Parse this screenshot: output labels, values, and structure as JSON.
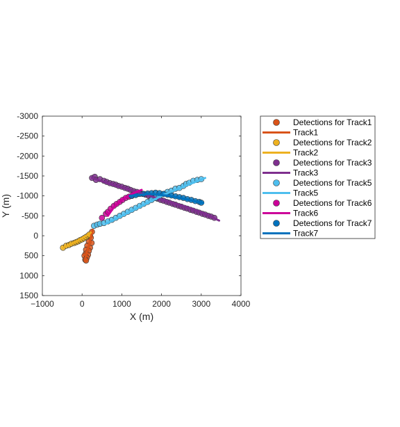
{
  "chart_data": {
    "type": "scatter",
    "xlabel": "X (m)",
    "ylabel": "Y (m)",
    "xlim": [
      -1000,
      4000
    ],
    "ylim": [
      -3000,
      1500
    ],
    "y_axis_reversed": true,
    "grid": false,
    "legend_placement": "outside-right",
    "x_ticks": [
      {
        "value": -1000,
        "label": "−1000"
      },
      {
        "value": 0,
        "label": "0"
      },
      {
        "value": 1000,
        "label": "1000"
      },
      {
        "value": 2000,
        "label": "2000"
      },
      {
        "value": 3000,
        "label": "3000"
      },
      {
        "value": 4000,
        "label": "4000"
      }
    ],
    "y_ticks": [
      {
        "value": -3000,
        "label": "-3000"
      },
      {
        "value": -2500,
        "label": "-2500"
      },
      {
        "value": -2000,
        "label": "-2000"
      },
      {
        "value": -1500,
        "label": "-1500"
      },
      {
        "value": -1000,
        "label": "-1000"
      },
      {
        "value": -500,
        "label": "-500"
      },
      {
        "value": 0,
        "label": "0"
      },
      {
        "value": 500,
        "label": "500"
      },
      {
        "value": 1000,
        "label": "1000"
      },
      {
        "value": 1500,
        "label": "1500"
      }
    ],
    "tracks": [
      {
        "track_name": "Track1",
        "detections_name": "Detections for Track1",
        "color": "#D95319",
        "track_line": [
          [
            270,
            -150
          ],
          [
            230,
            0
          ],
          [
            180,
            200
          ],
          [
            120,
            400
          ],
          [
            80,
            580
          ]
        ],
        "detections": [
          [
            250,
            -100
          ],
          [
            200,
            0
          ],
          [
            220,
            50
          ],
          [
            170,
            150
          ],
          [
            240,
            180
          ],
          [
            130,
            250
          ],
          [
            200,
            300
          ],
          [
            100,
            350
          ],
          [
            170,
            380
          ],
          [
            90,
            450
          ],
          [
            150,
            480
          ],
          [
            60,
            500
          ],
          [
            120,
            550
          ],
          [
            80,
            600
          ],
          [
            100,
            620
          ]
        ]
      },
      {
        "track_name": "Track2",
        "detections_name": "Detections for Track2",
        "color": "#EDB120",
        "track_line": [
          [
            -480,
            300
          ],
          [
            -300,
            220
          ],
          [
            -100,
            120
          ],
          [
            100,
            0
          ],
          [
            220,
            -80
          ]
        ],
        "detections": [
          [
            -480,
            300
          ],
          [
            -400,
            250
          ],
          [
            -330,
            230
          ],
          [
            -270,
            200
          ],
          [
            -200,
            180
          ],
          [
            -150,
            160
          ],
          [
            -100,
            140
          ],
          [
            -50,
            110
          ],
          [
            0,
            90
          ],
          [
            50,
            60
          ],
          [
            100,
            30
          ],
          [
            150,
            0
          ],
          [
            180,
            -30
          ]
        ]
      },
      {
        "track_name": "Track3",
        "detections_name": "Detections for Track3",
        "color": "#7E2F8E",
        "track_line": [
          [
            250,
            -1450
          ],
          [
            700,
            -1300
          ],
          [
            1200,
            -1150
          ],
          [
            1700,
            -1000
          ],
          [
            2200,
            -850
          ],
          [
            2700,
            -700
          ],
          [
            3100,
            -550
          ],
          [
            3450,
            -380
          ]
        ],
        "detections": [
          [
            250,
            -1450
          ],
          [
            320,
            -1480
          ],
          [
            350,
            -1400
          ],
          [
            450,
            -1420
          ],
          [
            550,
            -1380
          ],
          [
            620,
            -1350
          ],
          [
            700,
            -1320
          ],
          [
            780,
            -1300
          ],
          [
            850,
            -1280
          ],
          [
            920,
            -1250
          ],
          [
            1000,
            -1230
          ],
          [
            1080,
            -1200
          ],
          [
            1150,
            -1180
          ],
          [
            1220,
            -1150
          ],
          [
            1300,
            -1120
          ],
          [
            1380,
            -1100
          ],
          [
            1450,
            -1080
          ],
          [
            1530,
            -1050
          ],
          [
            1600,
            -1030
          ],
          [
            1680,
            -1000
          ],
          [
            1750,
            -980
          ],
          [
            1830,
            -950
          ],
          [
            1900,
            -930
          ],
          [
            1980,
            -900
          ],
          [
            2050,
            -880
          ],
          [
            2130,
            -850
          ],
          [
            2200,
            -830
          ],
          [
            2280,
            -800
          ],
          [
            2350,
            -780
          ],
          [
            2430,
            -750
          ],
          [
            2500,
            -730
          ],
          [
            2580,
            -700
          ],
          [
            2650,
            -680
          ],
          [
            2730,
            -650
          ],
          [
            2800,
            -630
          ],
          [
            2880,
            -600
          ],
          [
            2950,
            -580
          ],
          [
            3030,
            -550
          ],
          [
            3100,
            -530
          ],
          [
            3180,
            -500
          ],
          [
            3250,
            -480
          ],
          [
            3330,
            -450
          ]
        ]
      },
      {
        "track_name": "Track5",
        "detections_name": "Detections for Track5",
        "color": "#4DBEEE",
        "track_line": [
          [
            600,
            -300
          ],
          [
            1100,
            -550
          ],
          [
            1600,
            -800
          ],
          [
            2100,
            -1050
          ],
          [
            2600,
            -1250
          ],
          [
            3100,
            -1450
          ]
        ],
        "detections": [
          [
            300,
            -250
          ],
          [
            380,
            -280
          ],
          [
            450,
            -300
          ],
          [
            550,
            -320
          ],
          [
            650,
            -360
          ],
          [
            750,
            -400
          ],
          [
            850,
            -450
          ],
          [
            950,
            -500
          ],
          [
            1050,
            -550
          ],
          [
            1150,
            -600
          ],
          [
            1250,
            -650
          ],
          [
            1350,
            -700
          ],
          [
            1450,
            -750
          ],
          [
            1550,
            -800
          ],
          [
            1650,
            -850
          ],
          [
            1750,
            -900
          ],
          [
            1850,
            -950
          ],
          [
            1950,
            -1000
          ],
          [
            2050,
            -1050
          ],
          [
            2150,
            -1100
          ],
          [
            2250,
            -1130
          ],
          [
            2350,
            -1180
          ],
          [
            2450,
            -1200
          ],
          [
            2550,
            -1250
          ],
          [
            2620,
            -1300
          ],
          [
            2700,
            -1330
          ],
          [
            2800,
            -1380
          ],
          [
            2900,
            -1400
          ],
          [
            3000,
            -1420
          ]
        ]
      },
      {
        "track_name": "Track6",
        "detections_name": "Detections for Track6",
        "color": "#CC0099",
        "track_line": [
          [
            650,
            -500
          ],
          [
            800,
            -720
          ],
          [
            1000,
            -900
          ],
          [
            1250,
            -1050
          ],
          [
            1500,
            -1150
          ]
        ],
        "detections": [
          [
            500,
            -450
          ],
          [
            600,
            -550
          ],
          [
            650,
            -600
          ],
          [
            720,
            -680
          ],
          [
            800,
            -750
          ],
          [
            870,
            -800
          ],
          [
            950,
            -850
          ],
          [
            1020,
            -900
          ],
          [
            1100,
            -950
          ],
          [
            1180,
            -980
          ],
          [
            1250,
            -1000
          ],
          [
            1320,
            -1050
          ],
          [
            1400,
            -1050
          ]
        ]
      },
      {
        "track_name": "Track7",
        "detections_name": "Detections for Track7",
        "color": "#0072BD",
        "track_line": [
          [
            1200,
            -1000
          ],
          [
            1700,
            -1050
          ],
          [
            2200,
            -1000
          ],
          [
            2700,
            -900
          ],
          [
            3050,
            -820
          ]
        ],
        "detections": [
          [
            1250,
            -1000
          ],
          [
            1350,
            -1020
          ],
          [
            1450,
            -1050
          ],
          [
            1550,
            -1050
          ],
          [
            1650,
            -1060
          ],
          [
            1750,
            -1070
          ],
          [
            1850,
            -1080
          ],
          [
            1950,
            -1070
          ],
          [
            2050,
            -1050
          ],
          [
            2150,
            -1030
          ],
          [
            2250,
            -1010
          ],
          [
            2350,
            -990
          ],
          [
            2450,
            -970
          ],
          [
            2550,
            -950
          ],
          [
            2650,
            -920
          ],
          [
            2750,
            -900
          ],
          [
            2850,
            -870
          ],
          [
            2950,
            -850
          ],
          [
            3000,
            -830
          ]
        ]
      }
    ]
  }
}
